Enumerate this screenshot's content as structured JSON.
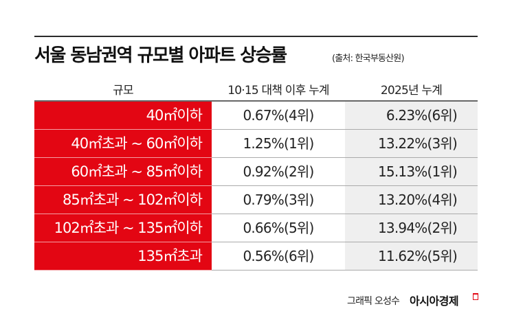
{
  "title": "서울 동남권역 규모별 아파트 상승률",
  "source": "(출처: 한국부동산원)",
  "table": {
    "headers": [
      "규모",
      "10·15 대책 이후 누계",
      "2025년 누계"
    ],
    "rows": [
      {
        "size": "40㎡이하",
        "after_1015": "0.67%(4위)",
        "ytd_2025": "6.23%(6위)"
      },
      {
        "size": "40㎡초과 ~ 60㎡이하",
        "after_1015": "1.25%(1위)",
        "ytd_2025": "13.22%(3위)"
      },
      {
        "size": "60㎡초과 ~ 85㎡이하",
        "after_1015": "0.92%(2위)",
        "ytd_2025": "15.13%(1위)"
      },
      {
        "size": "85㎡초과 ~ 102㎡이하",
        "after_1015": "0.79%(3위)",
        "ytd_2025": "13.20%(4위)"
      },
      {
        "size": "102㎡초과 ~ 135㎡이하",
        "after_1015": "0.66%(5위)",
        "ytd_2025": "13.94%(2위)"
      },
      {
        "size": "135㎡초과",
        "after_1015": "0.56%(6위)",
        "ytd_2025": "11.62%(5위)"
      }
    ]
  },
  "credit": "그래픽 오성수",
  "brand": "아시아경제",
  "colors": {
    "accent": "#e30613",
    "gray_column": "#efefef"
  },
  "chart_data": {
    "type": "table",
    "title": "서울 동남권역 규모별 아파트 상승률",
    "subtitle": "(출처: 한국부동산원)",
    "columns": [
      "규모",
      "10·15 대책 이후 누계",
      "2025년 누계"
    ],
    "categories": [
      "40㎡이하",
      "40㎡초과 ~ 60㎡이하",
      "60㎡초과 ~ 85㎡이하",
      "85㎡초과 ~ 102㎡이하",
      "102㎡초과 ~ 135㎡이하",
      "135㎡초과"
    ],
    "series": [
      {
        "name": "10·15 대책 이후 누계",
        "values": [
          0.67,
          1.25,
          0.92,
          0.79,
          0.66,
          0.56
        ],
        "ranks": [
          4,
          1,
          2,
          3,
          5,
          6
        ],
        "unit": "%"
      },
      {
        "name": "2025년 누계",
        "values": [
          6.23,
          13.22,
          15.13,
          13.2,
          13.94,
          11.62
        ],
        "ranks": [
          6,
          3,
          1,
          4,
          2,
          5
        ],
        "unit": "%"
      }
    ]
  }
}
